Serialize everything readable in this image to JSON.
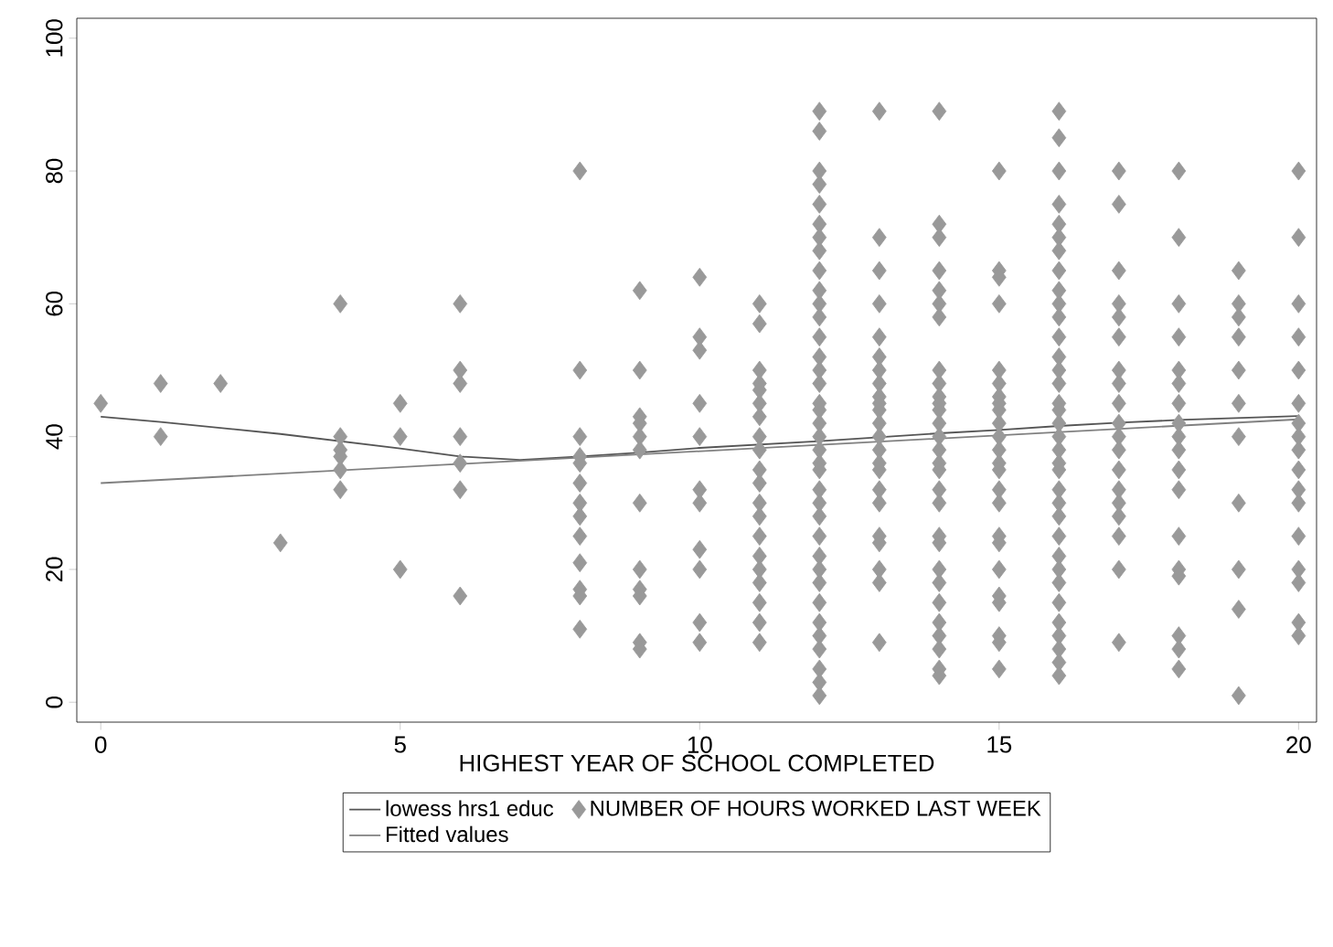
{
  "chart_data": {
    "type": "scatter",
    "xlabel": "HIGHEST YEAR OF SCHOOL COMPLETED",
    "xlim": [
      -0.4,
      20.3
    ],
    "ylim": [
      -3,
      103
    ],
    "xticks": [
      0,
      5,
      10,
      15,
      20
    ],
    "yticks": [
      0,
      20,
      40,
      60,
      80,
      100
    ],
    "grid": false,
    "legend": "bottom",
    "series": [
      {
        "name": "lowess hrs1 educ",
        "type": "line",
        "marker": "none",
        "line_style": "solid",
        "color": "#555555",
        "x": [
          0,
          1,
          2,
          3,
          4,
          5,
          6,
          7,
          8,
          9,
          10,
          11,
          12,
          13,
          14,
          15,
          16,
          17,
          18,
          19,
          20
        ],
        "values": [
          43,
          42.2,
          41.3,
          40.4,
          39.3,
          38.2,
          37,
          36.5,
          37,
          37.6,
          38.3,
          38.8,
          39.3,
          39.9,
          40.5,
          41,
          41.6,
          42.1,
          42.5,
          42.8,
          43.1
        ]
      },
      {
        "name": "NUMBER OF HOURS WORKED LAST WEEK",
        "marker": "diamond",
        "color": "#999999",
        "x": [
          0,
          1,
          1,
          2,
          3,
          4,
          4,
          4,
          4,
          4,
          4,
          5,
          5,
          5,
          6,
          6,
          6,
          6,
          6,
          6,
          6,
          8,
          8,
          8,
          8,
          8,
          8,
          8,
          8,
          8,
          8,
          8,
          8,
          8,
          9,
          9,
          9,
          9,
          9,
          9,
          9,
          9,
          9,
          9,
          9,
          9,
          10,
          10,
          10,
          10,
          10,
          10,
          10,
          10,
          10,
          10,
          10,
          11,
          11,
          11,
          11,
          11,
          11,
          11,
          11,
          11,
          11,
          11,
          11,
          11,
          11,
          11,
          11,
          11,
          11,
          11,
          11,
          12,
          12,
          12,
          12,
          12,
          12,
          12,
          12,
          12,
          12,
          12,
          12,
          12,
          12,
          12,
          12,
          12,
          12,
          12,
          12,
          12,
          12,
          12,
          12,
          12,
          12,
          12,
          12,
          12,
          12,
          12,
          12,
          12,
          12,
          12,
          12,
          12,
          13,
          13,
          13,
          13,
          13,
          13,
          13,
          13,
          13,
          13,
          13,
          13,
          13,
          13,
          13,
          13,
          13,
          13,
          13,
          13,
          13,
          13,
          13,
          14,
          14,
          14,
          14,
          14,
          14,
          14,
          14,
          14,
          14,
          14,
          14,
          14,
          14,
          14,
          14,
          14,
          14,
          14,
          14,
          14,
          14,
          14,
          14,
          14,
          14,
          14,
          14,
          14,
          15,
          15,
          15,
          15,
          15,
          15,
          15,
          15,
          15,
          15,
          15,
          15,
          15,
          15,
          15,
          15,
          15,
          15,
          15,
          15,
          15,
          15,
          15,
          15,
          16,
          16,
          16,
          16,
          16,
          16,
          16,
          16,
          16,
          16,
          16,
          16,
          16,
          16,
          16,
          16,
          16,
          16,
          16,
          16,
          16,
          16,
          16,
          16,
          16,
          16,
          16,
          16,
          16,
          16,
          16,
          16,
          16,
          16,
          16,
          17,
          17,
          17,
          17,
          17,
          17,
          17,
          17,
          17,
          17,
          17,
          17,
          17,
          17,
          17,
          17,
          17,
          17,
          17,
          18,
          18,
          18,
          18,
          18,
          18,
          18,
          18,
          18,
          18,
          18,
          18,
          18,
          18,
          18,
          18,
          18,
          18,
          19,
          19,
          19,
          19,
          19,
          19,
          19,
          19,
          19,
          19,
          19,
          20,
          20,
          20,
          20,
          20,
          20,
          20,
          20,
          20,
          20,
          20,
          20,
          20,
          20,
          20,
          20,
          20
        ],
        "values": [
          45,
          48,
          40,
          48,
          24,
          60,
          40,
          38,
          37,
          35,
          32,
          45,
          40,
          20,
          60,
          50,
          48,
          40,
          36,
          32,
          16,
          80,
          50,
          40,
          37,
          36,
          33,
          30,
          28,
          25,
          21,
          17,
          16,
          11,
          62,
          50,
          43,
          42,
          40,
          38,
          30,
          20,
          17,
          16,
          9,
          8,
          64,
          55,
          53,
          45,
          40,
          32,
          30,
          23,
          20,
          12,
          9,
          60,
          57,
          50,
          48,
          47,
          45,
          43,
          40,
          38,
          35,
          33,
          30,
          28,
          25,
          22,
          20,
          18,
          15,
          12,
          9,
          89,
          86,
          80,
          78,
          75,
          72,
          70,
          68,
          65,
          62,
          60,
          58,
          55,
          52,
          50,
          48,
          45,
          44,
          42,
          40,
          38,
          36,
          35,
          32,
          30,
          28,
          25,
          22,
          20,
          18,
          15,
          12,
          10,
          8,
          5,
          3,
          1,
          89,
          70,
          65,
          60,
          55,
          52,
          50,
          48,
          46,
          45,
          44,
          42,
          40,
          38,
          36,
          35,
          32,
          30,
          25,
          24,
          20,
          18,
          9,
          89,
          72,
          70,
          65,
          62,
          60,
          58,
          50,
          48,
          46,
          45,
          44,
          42,
          40,
          38,
          36,
          35,
          32,
          30,
          25,
          24,
          20,
          18,
          15,
          12,
          10,
          8,
          5,
          4,
          80,
          65,
          64,
          60,
          50,
          48,
          46,
          45,
          44,
          42,
          40,
          38,
          36,
          35,
          32,
          30,
          25,
          24,
          20,
          16,
          15,
          10,
          9,
          5,
          89,
          85,
          80,
          75,
          72,
          70,
          68,
          65,
          62,
          60,
          58,
          55,
          52,
          50,
          48,
          45,
          44,
          42,
          40,
          38,
          36,
          35,
          32,
          30,
          28,
          25,
          22,
          20,
          18,
          15,
          12,
          10,
          8,
          6,
          4,
          80,
          75,
          65,
          60,
          58,
          55,
          50,
          48,
          45,
          42,
          40,
          38,
          35,
          32,
          30,
          28,
          25,
          20,
          9,
          80,
          70,
          60,
          55,
          50,
          48,
          45,
          42,
          40,
          38,
          35,
          32,
          25,
          20,
          19,
          10,
          8,
          5,
          65,
          60,
          58,
          55,
          50,
          45,
          40,
          30,
          20,
          14,
          1,
          80,
          70,
          60,
          55,
          50,
          45,
          42,
          40,
          38,
          35,
          32,
          30,
          25,
          20,
          18,
          12,
          10
        ]
      },
      {
        "name": "Fitted values",
        "type": "line",
        "marker": "none",
        "line_style": "solid",
        "color": "#808080",
        "x": [
          0,
          20
        ],
        "values": [
          33,
          42.6
        ]
      }
    ]
  }
}
